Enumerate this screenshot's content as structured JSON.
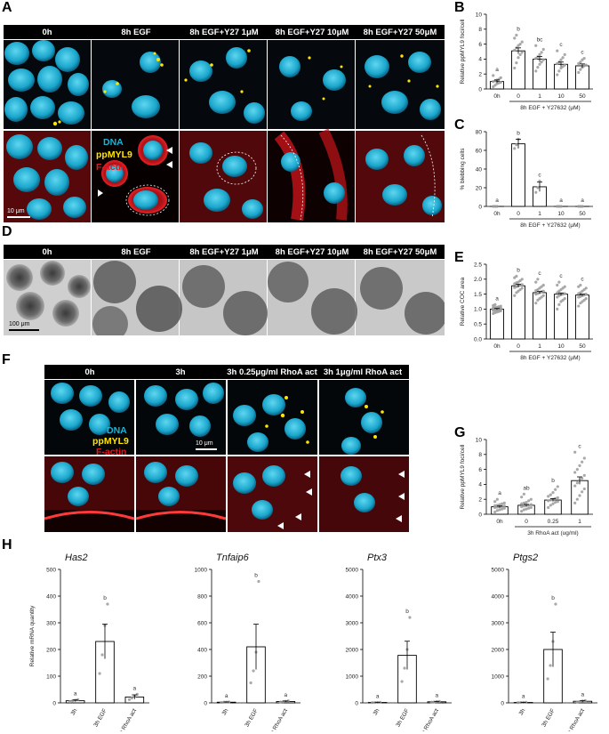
{
  "panel_labels": {
    "A": "A",
    "B": "B",
    "C": "C",
    "D": "D",
    "E": "E",
    "F": "F",
    "G": "G",
    "H": "H"
  },
  "panel_a": {
    "conditions": [
      "0h",
      "8h EGF",
      "8h EGF+Y27 1μM",
      "8h EGF+Y27 10μM",
      "8h EGF+Y27 50μM"
    ],
    "legend": {
      "dna": "DNA",
      "ppmyl9": "ppMYL9",
      "factin": "F-actin"
    },
    "scale_bar": "10 μm"
  },
  "panel_d": {
    "conditions": [
      "0h",
      "8h EGF",
      "8h EGF+Y27 1μM",
      "8h EGF+Y27 10μM",
      "8h EGF+Y27 50μM"
    ],
    "scale_bar": "100 μm"
  },
  "panel_f": {
    "conditions": [
      "0h",
      "3h",
      "3h 0.25μg/ml RhoA act",
      "3h 1μg/ml RhoA act"
    ],
    "legend": {
      "dna": "DNA",
      "ppmyl9": "ppMYL9",
      "factin": "F-actin"
    },
    "scale_bar": "10 μm"
  },
  "colors": {
    "dna": "#1ab4d8",
    "ppmyl9": "#ffe600",
    "factin": "#e8141c",
    "bar_edge": "#000000",
    "point": "#9a9a9a"
  },
  "chart_data": [
    {
      "id": "B",
      "type": "bar",
      "categories": [
        "0h",
        "0",
        "1",
        "10",
        "50"
      ],
      "values": [
        1.0,
        5.1,
        4.0,
        3.3,
        3.1
      ],
      "errors": [
        0.2,
        0.4,
        0.35,
        0.3,
        0.25
      ],
      "letters": [
        "a",
        "b",
        "bc",
        "c",
        "c"
      ],
      "ylabel": "Relative ppMYL9 foci/cell",
      "group_label": "8h EGF + Y27632 (μM)",
      "yticks": [
        0,
        2,
        4,
        6,
        8,
        10
      ],
      "ylim": [
        0,
        10
      ],
      "points": [
        [
          0.3,
          0.5,
          0.7,
          0.8,
          0.9,
          1.0,
          1.1,
          1.2,
          1.3,
          1.5,
          1.8
        ],
        [
          2.8,
          3.5,
          4.2,
          4.6,
          4.9,
          5.2,
          5.5,
          5.8,
          6.0,
          6.3,
          6.8,
          7.2
        ],
        [
          2.4,
          2.9,
          3.3,
          3.6,
          3.9,
          4.1,
          4.3,
          4.6,
          4.9,
          5.3,
          5.8
        ],
        [
          1.9,
          2.4,
          2.8,
          3.0,
          3.2,
          3.4,
          3.6,
          3.9,
          4.2,
          4.6,
          5.1
        ],
        [
          2.2,
          2.6,
          2.9,
          3.1,
          3.2,
          3.4,
          3.6,
          3.9,
          4.1
        ]
      ]
    },
    {
      "id": "C",
      "type": "bar",
      "categories": [
        "0h",
        "0",
        "1",
        "10",
        "50"
      ],
      "values": [
        0,
        67,
        21,
        0,
        0
      ],
      "errors": [
        0,
        5,
        5,
        0,
        0
      ],
      "letters": [
        "a",
        "b",
        "c",
        "a",
        "a"
      ],
      "ylabel": "% blebbing cells",
      "group_label": "8h EGF + Y27632 (μM)",
      "yticks": [
        0,
        20,
        40,
        60,
        80
      ],
      "ylim": [
        0,
        80
      ],
      "points": [
        [
          0,
          0,
          0
        ],
        [
          62,
          66,
          72
        ],
        [
          15,
          20,
          27
        ],
        [
          0,
          0,
          0
        ],
        [
          0,
          0,
          0
        ]
      ]
    },
    {
      "id": "E",
      "type": "bar",
      "categories": [
        "0h",
        "0",
        "1",
        "10",
        "50"
      ],
      "values": [
        1.0,
        1.78,
        1.55,
        1.5,
        1.47
      ],
      "errors": [
        0.02,
        0.05,
        0.04,
        0.04,
        0.03
      ],
      "letters": [
        "a",
        "b",
        "c",
        "c",
        "c"
      ],
      "ylabel": "Relative COC area",
      "group_label": "8h EGF + Y27632 (μM)",
      "yticks": [
        0.0,
        0.5,
        1.0,
        1.5,
        2.0,
        2.5
      ],
      "ylim": [
        0,
        2.5
      ],
      "points": [
        [
          0.85,
          0.88,
          0.9,
          0.92,
          0.94,
          0.95,
          0.96,
          0.97,
          0.98,
          0.99,
          1.0,
          1.0,
          1.01,
          1.02,
          1.03,
          1.04,
          1.05,
          1.06,
          1.08,
          1.1,
          1.12,
          1.15
        ],
        [
          1.45,
          1.55,
          1.6,
          1.65,
          1.7,
          1.72,
          1.75,
          1.78,
          1.8,
          1.82,
          1.85,
          1.88,
          1.9,
          1.95,
          2.0,
          2.05,
          2.1
        ],
        [
          1.2,
          1.3,
          1.35,
          1.4,
          1.45,
          1.5,
          1.52,
          1.55,
          1.58,
          1.6,
          1.62,
          1.65,
          1.7,
          1.75,
          1.8,
          1.9,
          2.0
        ],
        [
          1.0,
          1.15,
          1.25,
          1.3,
          1.35,
          1.4,
          1.45,
          1.48,
          1.5,
          1.52,
          1.55,
          1.6,
          1.65,
          1.7,
          1.75,
          1.8,
          1.9
        ],
        [
          1.1,
          1.2,
          1.25,
          1.3,
          1.35,
          1.4,
          1.42,
          1.45,
          1.47,
          1.5,
          1.52,
          1.55,
          1.6,
          1.65,
          1.7,
          1.75,
          1.8
        ]
      ]
    },
    {
      "id": "G",
      "type": "bar",
      "categories": [
        "0h",
        "0",
        "0.25",
        "1"
      ],
      "values": [
        1.0,
        1.2,
        1.9,
        4.5
      ],
      "errors": [
        0.1,
        0.12,
        0.2,
        0.5
      ],
      "letters": [
        "a",
        "ab",
        "b",
        "c"
      ],
      "ylabel": "Relative ppMYL9 foci/cell",
      "group_label": "3h RhoA act (ug/ml)",
      "yticks": [
        0,
        2,
        4,
        6,
        8,
        10
      ],
      "ylim": [
        0,
        10
      ],
      "points": [
        [
          0.3,
          0.5,
          0.6,
          0.7,
          0.8,
          0.9,
          0.95,
          1.0,
          1.05,
          1.1,
          1.15,
          1.2,
          1.3,
          1.4,
          1.5,
          1.7,
          2.0
        ],
        [
          0.4,
          0.6,
          0.7,
          0.8,
          0.9,
          1.0,
          1.1,
          1.15,
          1.2,
          1.3,
          1.4,
          1.5,
          1.6,
          1.8,
          2.0,
          2.3,
          2.7
        ],
        [
          0.9,
          1.2,
          1.4,
          1.6,
          1.7,
          1.8,
          1.9,
          2.0,
          2.1,
          2.2,
          2.4,
          2.6,
          2.9,
          3.3,
          3.7
        ],
        [
          1.5,
          2.0,
          2.5,
          3.0,
          3.4,
          3.8,
          4.2,
          4.5,
          4.8,
          5.2,
          5.6,
          6.0,
          6.5,
          7.0,
          7.5,
          8.3
        ]
      ]
    },
    {
      "id": "H1",
      "type": "bar",
      "gene": "Has2",
      "categories": [
        "3h",
        "3h EGF",
        "3h RhoA act"
      ],
      "values": [
        8,
        230,
        22
      ],
      "errors": [
        3,
        65,
        8
      ],
      "letters": [
        "a",
        "b",
        "a"
      ],
      "ylabel": "Relative mRNA quantity",
      "yticks": [
        0,
        100,
        200,
        300,
        400,
        500
      ],
      "ylim": [
        0,
        500
      ],
      "points": [
        [
          5,
          8,
          10,
          12
        ],
        [
          110,
          180,
          290,
          370
        ],
        [
          12,
          18,
          25,
          32
        ]
      ]
    },
    {
      "id": "H2",
      "type": "bar",
      "gene": "Tnfaip6",
      "categories": [
        "3h",
        "3h EGF",
        "3h RhoA act"
      ],
      "values": [
        5,
        420,
        10
      ],
      "errors": [
        2,
        170,
        4
      ],
      "letters": [
        "a",
        "b",
        "a"
      ],
      "ylabel": "",
      "yticks": [
        0,
        200,
        400,
        600,
        800,
        1000
      ],
      "ylim": [
        0,
        1000
      ],
      "points": [
        [
          3,
          5,
          6,
          7
        ],
        [
          150,
          240,
          380,
          910
        ],
        [
          6,
          9,
          12,
          15
        ]
      ]
    },
    {
      "id": "H3",
      "type": "bar",
      "gene": "Ptx3",
      "categories": [
        "3h",
        "3h EGF",
        "3h RhoA act"
      ],
      "values": [
        15,
        1780,
        40
      ],
      "errors": [
        6,
        530,
        15
      ],
      "letters": [
        "a",
        "b",
        "a"
      ],
      "ylabel": "",
      "yticks": [
        0,
        1000,
        2000,
        3000,
        4000,
        5000
      ],
      "ylim": [
        0,
        5000
      ],
      "points": [
        [
          8,
          12,
          18,
          22
        ],
        [
          800,
          1300,
          2000,
          3200
        ],
        [
          25,
          35,
          45,
          55
        ]
      ]
    },
    {
      "id": "H4",
      "type": "bar",
      "gene": "Ptgs2",
      "categories": [
        "3h",
        "3h EGF",
        "3h RhoA act"
      ],
      "values": [
        15,
        2000,
        60
      ],
      "errors": [
        5,
        650,
        20
      ],
      "letters": [
        "a",
        "b",
        "a"
      ],
      "ylabel": "",
      "yticks": [
        0,
        1000,
        2000,
        3000,
        4000,
        5000
      ],
      "ylim": [
        0,
        5000
      ],
      "points": [
        [
          8,
          12,
          18,
          22
        ],
        [
          900,
          1400,
          2300,
          3700
        ],
        [
          30,
          50,
          70,
          90
        ]
      ]
    }
  ]
}
